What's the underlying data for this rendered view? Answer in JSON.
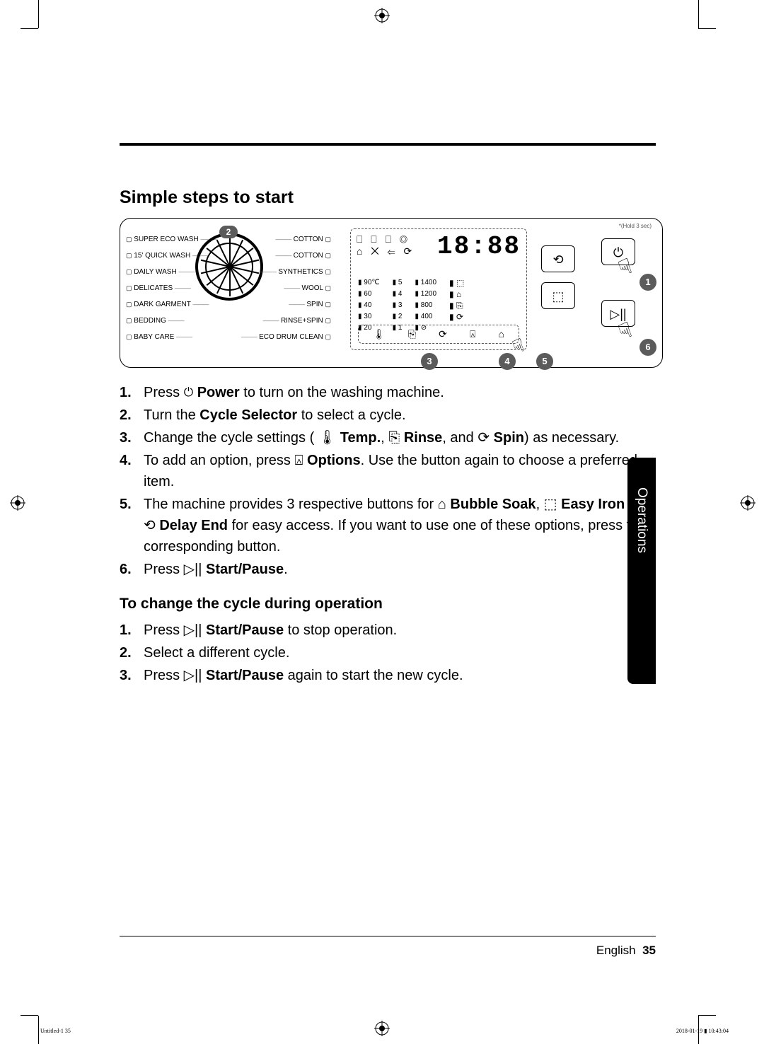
{
  "section_title": "Simple steps to start",
  "dial_left_labels": [
    "SUPER ECO WASH",
    "15' QUICK WASH",
    "DAILY WASH",
    "DELICATES",
    "DARK GARMENT",
    "BEDDING",
    "BABY CARE"
  ],
  "dial_right_labels": [
    "COTTON",
    "COTTON",
    "SYNTHETICS",
    "WOOL",
    "SPIN",
    "RINSE+SPIN",
    "ECO DRUM CLEAN"
  ],
  "seven_seg": "18:88",
  "hold_text": "*(Hold 3 sec)",
  "col_temp": [
    "90℃",
    "60",
    "40",
    "30",
    "20"
  ],
  "col_rinse": [
    "5",
    "4",
    "3",
    "2",
    "1"
  ],
  "col_spin": [
    "1400",
    "1200",
    "800",
    "400"
  ],
  "badge_numbers": {
    "b1": "1",
    "b2": "2",
    "b3": "3",
    "b4": "4",
    "b5": "5",
    "b6": "6"
  },
  "steps": [
    {
      "n": "1.",
      "pre": "Press ",
      "icon": "⏻",
      "bold": " Power",
      "post": " to turn on the washing machine."
    },
    {
      "n": "2.",
      "pre": "Turn the ",
      "bold": "Cycle Selector",
      "post": " to select a cycle."
    },
    {
      "n": "3.",
      "raw": "Change the cycle settings ( 🌡 <b>Temp.</b>, ⎘ <b>Rinse</b>, and ⟳ <b>Spin</b>) as necessary."
    },
    {
      "n": "4.",
      "raw": "To add an option, press ⍓ <b>Options</b>. Use the button again to choose a preferred item."
    },
    {
      "n": "5.",
      "raw": "The machine provides 3 respective buttons for ⌂ <b>Bubble Soak</b>, ⬚ <b>Easy Iron</b> and ⟲ <b>Delay End</b> for easy access. If you want to use one of these options, press the corresponding button."
    },
    {
      "n": "6.",
      "raw": "Press ▷|| <b>Start/Pause</b>."
    }
  ],
  "sub_section_title": "To change the cycle during operation",
  "steps2": [
    {
      "n": "1.",
      "raw": "Press ▷|| <b>Start/Pause</b> to stop operation."
    },
    {
      "n": "2.",
      "raw": "Select a different cycle."
    },
    {
      "n": "3.",
      "raw": "Press ▷|| <b>Start/Pause</b> again to start the new cycle."
    }
  ],
  "side_tab": "Operations",
  "footer_lang": "English",
  "footer_page": "35",
  "slug_left": "Untitled-1   35",
  "slug_right": "2018-01-19   ▮ 10:43:04"
}
